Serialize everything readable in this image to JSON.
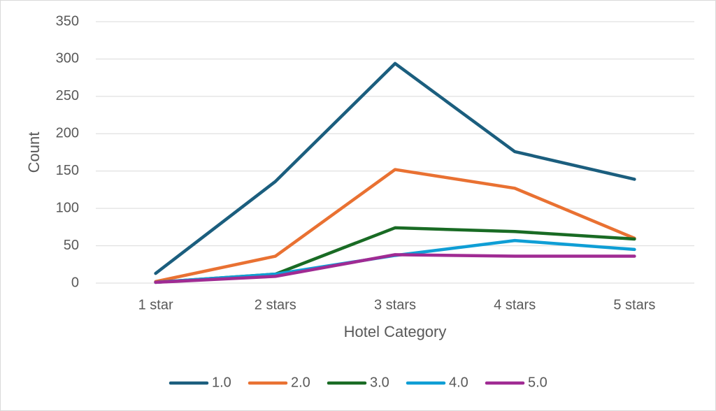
{
  "chart_data": {
    "type": "line",
    "x_label": "Hotel Category",
    "y_label": "Count",
    "categories": [
      "1 star",
      "2 stars",
      "3 stars",
      "4 stars",
      "5 stars"
    ],
    "series": [
      {
        "name": "1.0",
        "color": "#1b5e7e",
        "values": [
          13,
          136,
          294,
          176,
          139
        ]
      },
      {
        "name": "2.0",
        "color": "#e97132",
        "values": [
          2,
          36,
          152,
          127,
          60
        ]
      },
      {
        "name": "3.0",
        "color": "#196b24",
        "values": [
          1,
          12,
          74,
          69,
          59
        ]
      },
      {
        "name": "4.0",
        "color": "#0f9ed5",
        "values": [
          1,
          12,
          37,
          57,
          45
        ]
      },
      {
        "name": "5.0",
        "color": "#a02b93",
        "values": [
          1,
          9,
          38,
          36,
          36
        ]
      }
    ],
    "ylim": [
      0,
      350
    ],
    "yticks": [
      0,
      50,
      100,
      150,
      200,
      250,
      300,
      350
    ],
    "grid": true,
    "legend": "bottom"
  }
}
